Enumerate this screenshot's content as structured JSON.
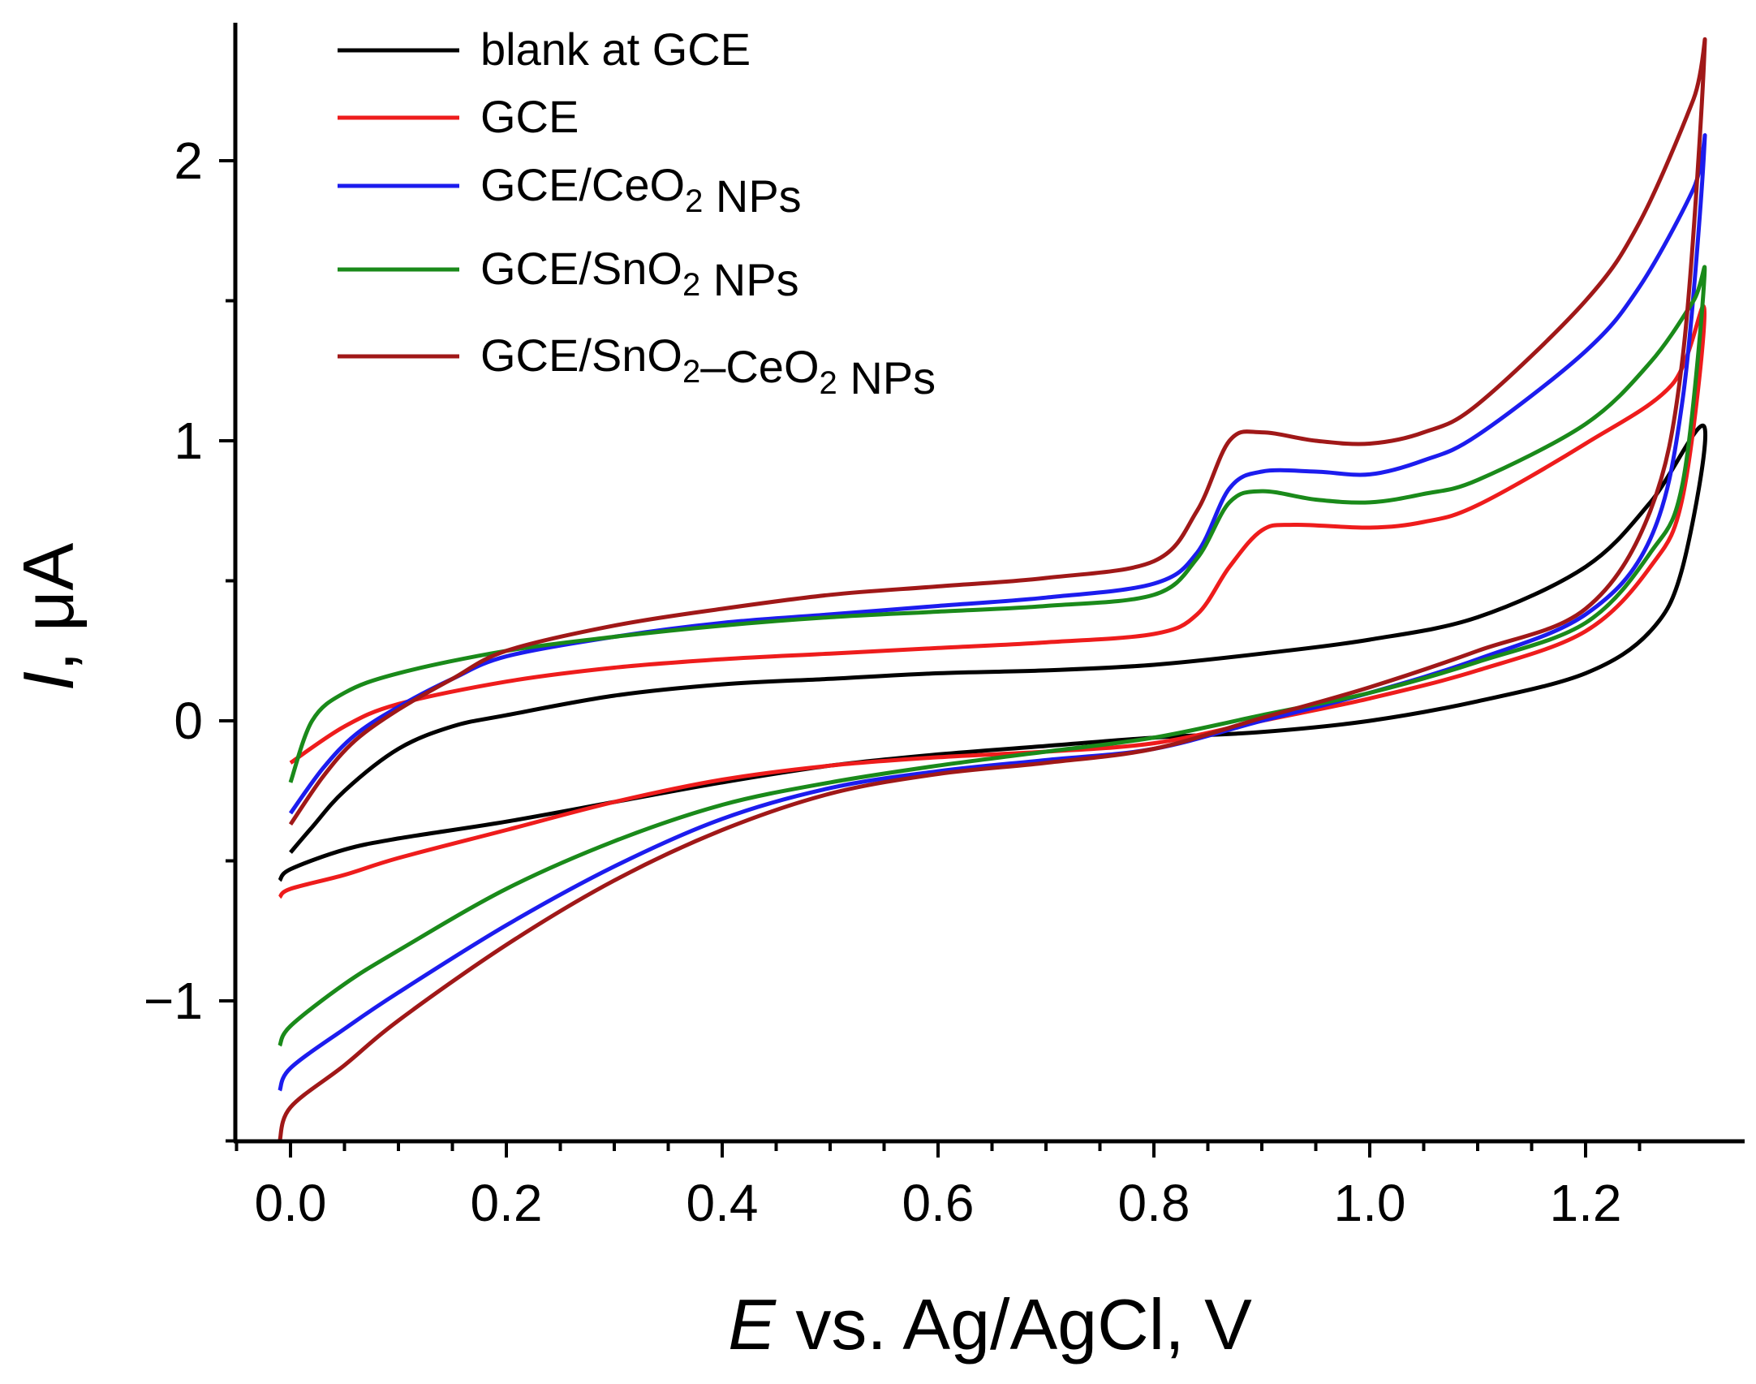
{
  "chart_data": {
    "type": "line",
    "title": "",
    "xlabel": {
      "italic": "E",
      "rest": " vs. Ag/AgCl, V"
    },
    "ylabel": {
      "italic": "I",
      "rest": ", μA"
    },
    "xlim": [
      -0.05,
      1.35
    ],
    "ylim": [
      -1.5,
      2.5
    ],
    "xticks": [
      0.0,
      0.2,
      0.4,
      0.6,
      0.8,
      1.0,
      1.2
    ],
    "xtick_labels": [
      "0.0",
      "0.2",
      "0.4",
      "0.6",
      "0.8",
      "1.0",
      "1.2"
    ],
    "yticks": [
      -1,
      0,
      1,
      2
    ],
    "ytick_labels": [
      "−1",
      "0",
      "1",
      "2"
    ],
    "grid": false,
    "legend_position": "top-left",
    "series": [
      {
        "name": "blank at GCE",
        "legend": [
          {
            "t": "blank at GCE"
          }
        ],
        "color": "#000000",
        "x": [
          0.0,
          0.02,
          0.05,
          0.1,
          0.15,
          0.2,
          0.3,
          0.4,
          0.5,
          0.6,
          0.7,
          0.8,
          0.9,
          1.0,
          1.1,
          1.2,
          1.26,
          1.31,
          1.29,
          1.26,
          1.2,
          1.1,
          1.0,
          0.9,
          0.8,
          0.7,
          0.6,
          0.5,
          0.4,
          0.3,
          0.2,
          0.1,
          0.05,
          0.0,
          -0.01
        ],
        "y": [
          -0.47,
          -0.38,
          -0.25,
          -0.1,
          -0.02,
          0.02,
          0.09,
          0.13,
          0.15,
          0.17,
          0.18,
          0.2,
          0.24,
          0.29,
          0.37,
          0.55,
          0.78,
          1.05,
          0.55,
          0.32,
          0.17,
          0.07,
          0.0,
          -0.04,
          -0.06,
          -0.09,
          -0.12,
          -0.16,
          -0.22,
          -0.29,
          -0.36,
          -0.42,
          -0.46,
          -0.53,
          -0.57
        ]
      },
      {
        "name": "GCE",
        "legend": [
          {
            "t": "GCE"
          }
        ],
        "color": "#ee1c1c",
        "x": [
          0.0,
          0.05,
          0.1,
          0.2,
          0.3,
          0.4,
          0.5,
          0.6,
          0.7,
          0.8,
          0.84,
          0.87,
          0.9,
          0.93,
          1.0,
          1.05,
          1.1,
          1.2,
          1.28,
          1.31,
          1.29,
          1.26,
          1.2,
          1.1,
          1.0,
          0.9,
          0.8,
          0.7,
          0.6,
          0.5,
          0.4,
          0.3,
          0.2,
          0.1,
          0.05,
          0.0,
          -0.01
        ],
        "y": [
          -0.15,
          -0.02,
          0.06,
          0.14,
          0.19,
          0.22,
          0.24,
          0.26,
          0.28,
          0.31,
          0.38,
          0.55,
          0.68,
          0.7,
          0.69,
          0.71,
          0.77,
          0.99,
          1.2,
          1.47,
          0.8,
          0.55,
          0.32,
          0.18,
          0.08,
          0.0,
          -0.08,
          -0.11,
          -0.13,
          -0.16,
          -0.21,
          -0.29,
          -0.39,
          -0.49,
          -0.55,
          -0.6,
          -0.63
        ]
      },
      {
        "name": "GCE/CeO2 NPs",
        "legend": [
          {
            "t": "GCE/CeO"
          },
          {
            "t": "2",
            "sub": true
          },
          {
            "t": " NPs"
          }
        ],
        "color": "#1c1cee",
        "x": [
          0.0,
          0.03,
          0.06,
          0.1,
          0.15,
          0.2,
          0.3,
          0.4,
          0.5,
          0.6,
          0.7,
          0.8,
          0.84,
          0.87,
          0.9,
          0.95,
          1.0,
          1.05,
          1.1,
          1.2,
          1.25,
          1.3,
          1.31,
          1.29,
          1.26,
          1.2,
          1.1,
          1.0,
          0.9,
          0.8,
          0.7,
          0.6,
          0.5,
          0.4,
          0.3,
          0.2,
          0.1,
          0.05,
          0.0,
          -0.01
        ],
        "y": [
          -0.33,
          -0.17,
          -0.05,
          0.05,
          0.15,
          0.23,
          0.3,
          0.35,
          0.38,
          0.41,
          0.44,
          0.49,
          0.6,
          0.83,
          0.89,
          0.89,
          0.88,
          0.93,
          1.02,
          1.32,
          1.55,
          1.9,
          2.05,
          1.15,
          0.65,
          0.38,
          0.22,
          0.1,
          0.0,
          -0.1,
          -0.14,
          -0.18,
          -0.24,
          -0.35,
          -0.52,
          -0.73,
          -0.97,
          -1.1,
          -1.24,
          -1.32
        ]
      },
      {
        "name": "GCE/SnO2 NPs",
        "legend": [
          {
            "t": "GCE/SnO"
          },
          {
            "t": "2",
            "sub": true
          },
          {
            "t": " NPs"
          }
        ],
        "color": "#1a8a1a",
        "x": [
          0.0,
          0.02,
          0.05,
          0.1,
          0.2,
          0.3,
          0.4,
          0.5,
          0.6,
          0.7,
          0.8,
          0.84,
          0.87,
          0.9,
          0.95,
          1.0,
          1.05,
          1.1,
          1.2,
          1.26,
          1.3,
          1.31,
          1.29,
          1.26,
          1.2,
          1.1,
          1.0,
          0.9,
          0.8,
          0.7,
          0.6,
          0.5,
          0.4,
          0.3,
          0.2,
          0.1,
          0.05,
          0.0,
          -0.01
        ],
        "y": [
          -0.22,
          0.0,
          0.1,
          0.17,
          0.25,
          0.3,
          0.34,
          0.37,
          0.39,
          0.41,
          0.45,
          0.58,
          0.78,
          0.82,
          0.79,
          0.78,
          0.81,
          0.86,
          1.06,
          1.28,
          1.5,
          1.58,
          0.85,
          0.6,
          0.35,
          0.21,
          0.1,
          0.02,
          -0.06,
          -0.11,
          -0.16,
          -0.22,
          -0.3,
          -0.43,
          -0.6,
          -0.82,
          -0.94,
          -1.09,
          -1.16
        ]
      },
      {
        "name": "GCE/SnO2–CeO2 NPs",
        "legend": [
          {
            "t": "GCE/SnO"
          },
          {
            "t": "2",
            "sub": true
          },
          {
            "t": "–CeO"
          },
          {
            "t": "2",
            "sub": true
          },
          {
            "t": " NPs"
          }
        ],
        "color": "#a01818",
        "x": [
          0.0,
          0.03,
          0.06,
          0.1,
          0.15,
          0.2,
          0.3,
          0.4,
          0.5,
          0.6,
          0.7,
          0.8,
          0.84,
          0.87,
          0.9,
          0.95,
          1.0,
          1.05,
          1.1,
          1.2,
          1.25,
          1.3,
          1.31,
          1.29,
          1.26,
          1.2,
          1.1,
          1.0,
          0.9,
          0.8,
          0.7,
          0.6,
          0.5,
          0.4,
          0.3,
          0.2,
          0.1,
          0.05,
          0.0,
          -0.01
        ],
        "y": [
          -0.37,
          -0.2,
          -0.07,
          0.04,
          0.15,
          0.25,
          0.34,
          0.4,
          0.45,
          0.48,
          0.51,
          0.57,
          0.75,
          1.0,
          1.03,
          1.0,
          0.99,
          1.03,
          1.13,
          1.5,
          1.78,
          2.22,
          2.38,
          1.3,
          0.75,
          0.4,
          0.25,
          0.12,
          0.01,
          -0.1,
          -0.15,
          -0.19,
          -0.26,
          -0.39,
          -0.57,
          -0.8,
          -1.07,
          -1.23,
          -1.38,
          -1.5
        ]
      }
    ]
  }
}
